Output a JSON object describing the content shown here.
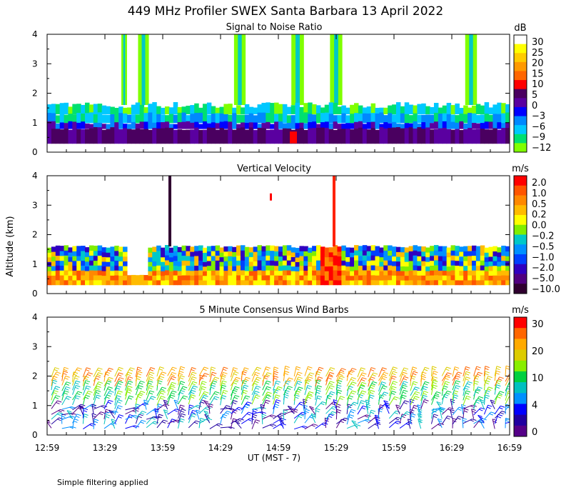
{
  "figure": {
    "title": "449 MHz Profiler SWEX Santa Barbara 13 April 2022",
    "ylabel": "Altitude (km)",
    "xlabel": "UT  (MST - 7)",
    "footnote": "Simple filtering applied",
    "x_tick_labels": [
      "12:59",
      "13:29",
      "13:59",
      "14:29",
      "14:59",
      "15:29",
      "15:59",
      "16:29",
      "16:59"
    ]
  },
  "chart_data": [
    {
      "type": "heatmap",
      "title": "Signal to Noise Ratio",
      "x_range": [
        "12:59",
        "16:59"
      ],
      "ylim": [
        0,
        4
      ],
      "y_ticks": [
        "0",
        "1",
        "2",
        "3",
        "4"
      ],
      "colorbar": {
        "unit": "dB",
        "labels": [
          "30",
          "25",
          "20",
          "15",
          "10",
          "5",
          "0",
          "−3",
          "−6",
          "−9",
          "−12"
        ],
        "colors": [
          "#ffffff",
          "#ffff00",
          "#ffcc00",
          "#ff9900",
          "#ff6600",
          "#ff0000",
          "#4a0060",
          "#5a00a0",
          "#0000ff",
          "#0088ff",
          "#00c8ff",
          "#00e070",
          "#80ff00"
        ]
      },
      "features": {
        "base_top_km": 1.6,
        "plumes_to_4km_utc": [
          "13:39",
          "13:49",
          "14:39",
          "15:09",
          "15:29",
          "16:39"
        ],
        "min_range_km": 0.3
      }
    },
    {
      "type": "heatmap",
      "title": "Vertical Velocity",
      "x_range": [
        "12:59",
        "16:59"
      ],
      "ylim": [
        0,
        4
      ],
      "y_ticks": [
        "0",
        "1",
        "2",
        "3",
        "4"
      ],
      "colorbar": {
        "unit": "m/s",
        "labels": [
          "2.0",
          "1.0",
          "0.5",
          "0.2",
          "0.0",
          "−0.2",
          "−0.5",
          "−1.0",
          "−2.0",
          "−5.0",
          "−10.0"
        ],
        "colors": [
          "#ff0000",
          "#ff5500",
          "#ff8800",
          "#ffbb00",
          "#ffff00",
          "#80ee00",
          "#00c8c8",
          "#0090ff",
          "#0040ff",
          "#3000c0",
          "#500080",
          "#300030"
        ]
      },
      "features": {
        "data_top_km": 1.6,
        "updraft_column_utc": "15:29",
        "downdraft_column_utc": "13:59"
      }
    },
    {
      "type": "wind_barbs",
      "title": "5 Minute Consensus Wind Barbs",
      "x_range": [
        "12:59",
        "16:59"
      ],
      "ylim": [
        0,
        4
      ],
      "y_ticks": [
        "0",
        "1",
        "2",
        "3",
        "4"
      ],
      "colorbar": {
        "unit": "m/s",
        "labels": [
          "30",
          "20",
          "10",
          "4",
          "0"
        ],
        "colors": [
          "#ff0000",
          "#ff6600",
          "#ffaa00",
          "#ddcc00",
          "#88ee00",
          "#00d040",
          "#00c0c0",
          "#0090ff",
          "#0000ff",
          "#2000a0",
          "#550088"
        ]
      },
      "features": {
        "top_speed_color_upper": "orange",
        "lower_levels": "cyan to purple"
      }
    }
  ]
}
